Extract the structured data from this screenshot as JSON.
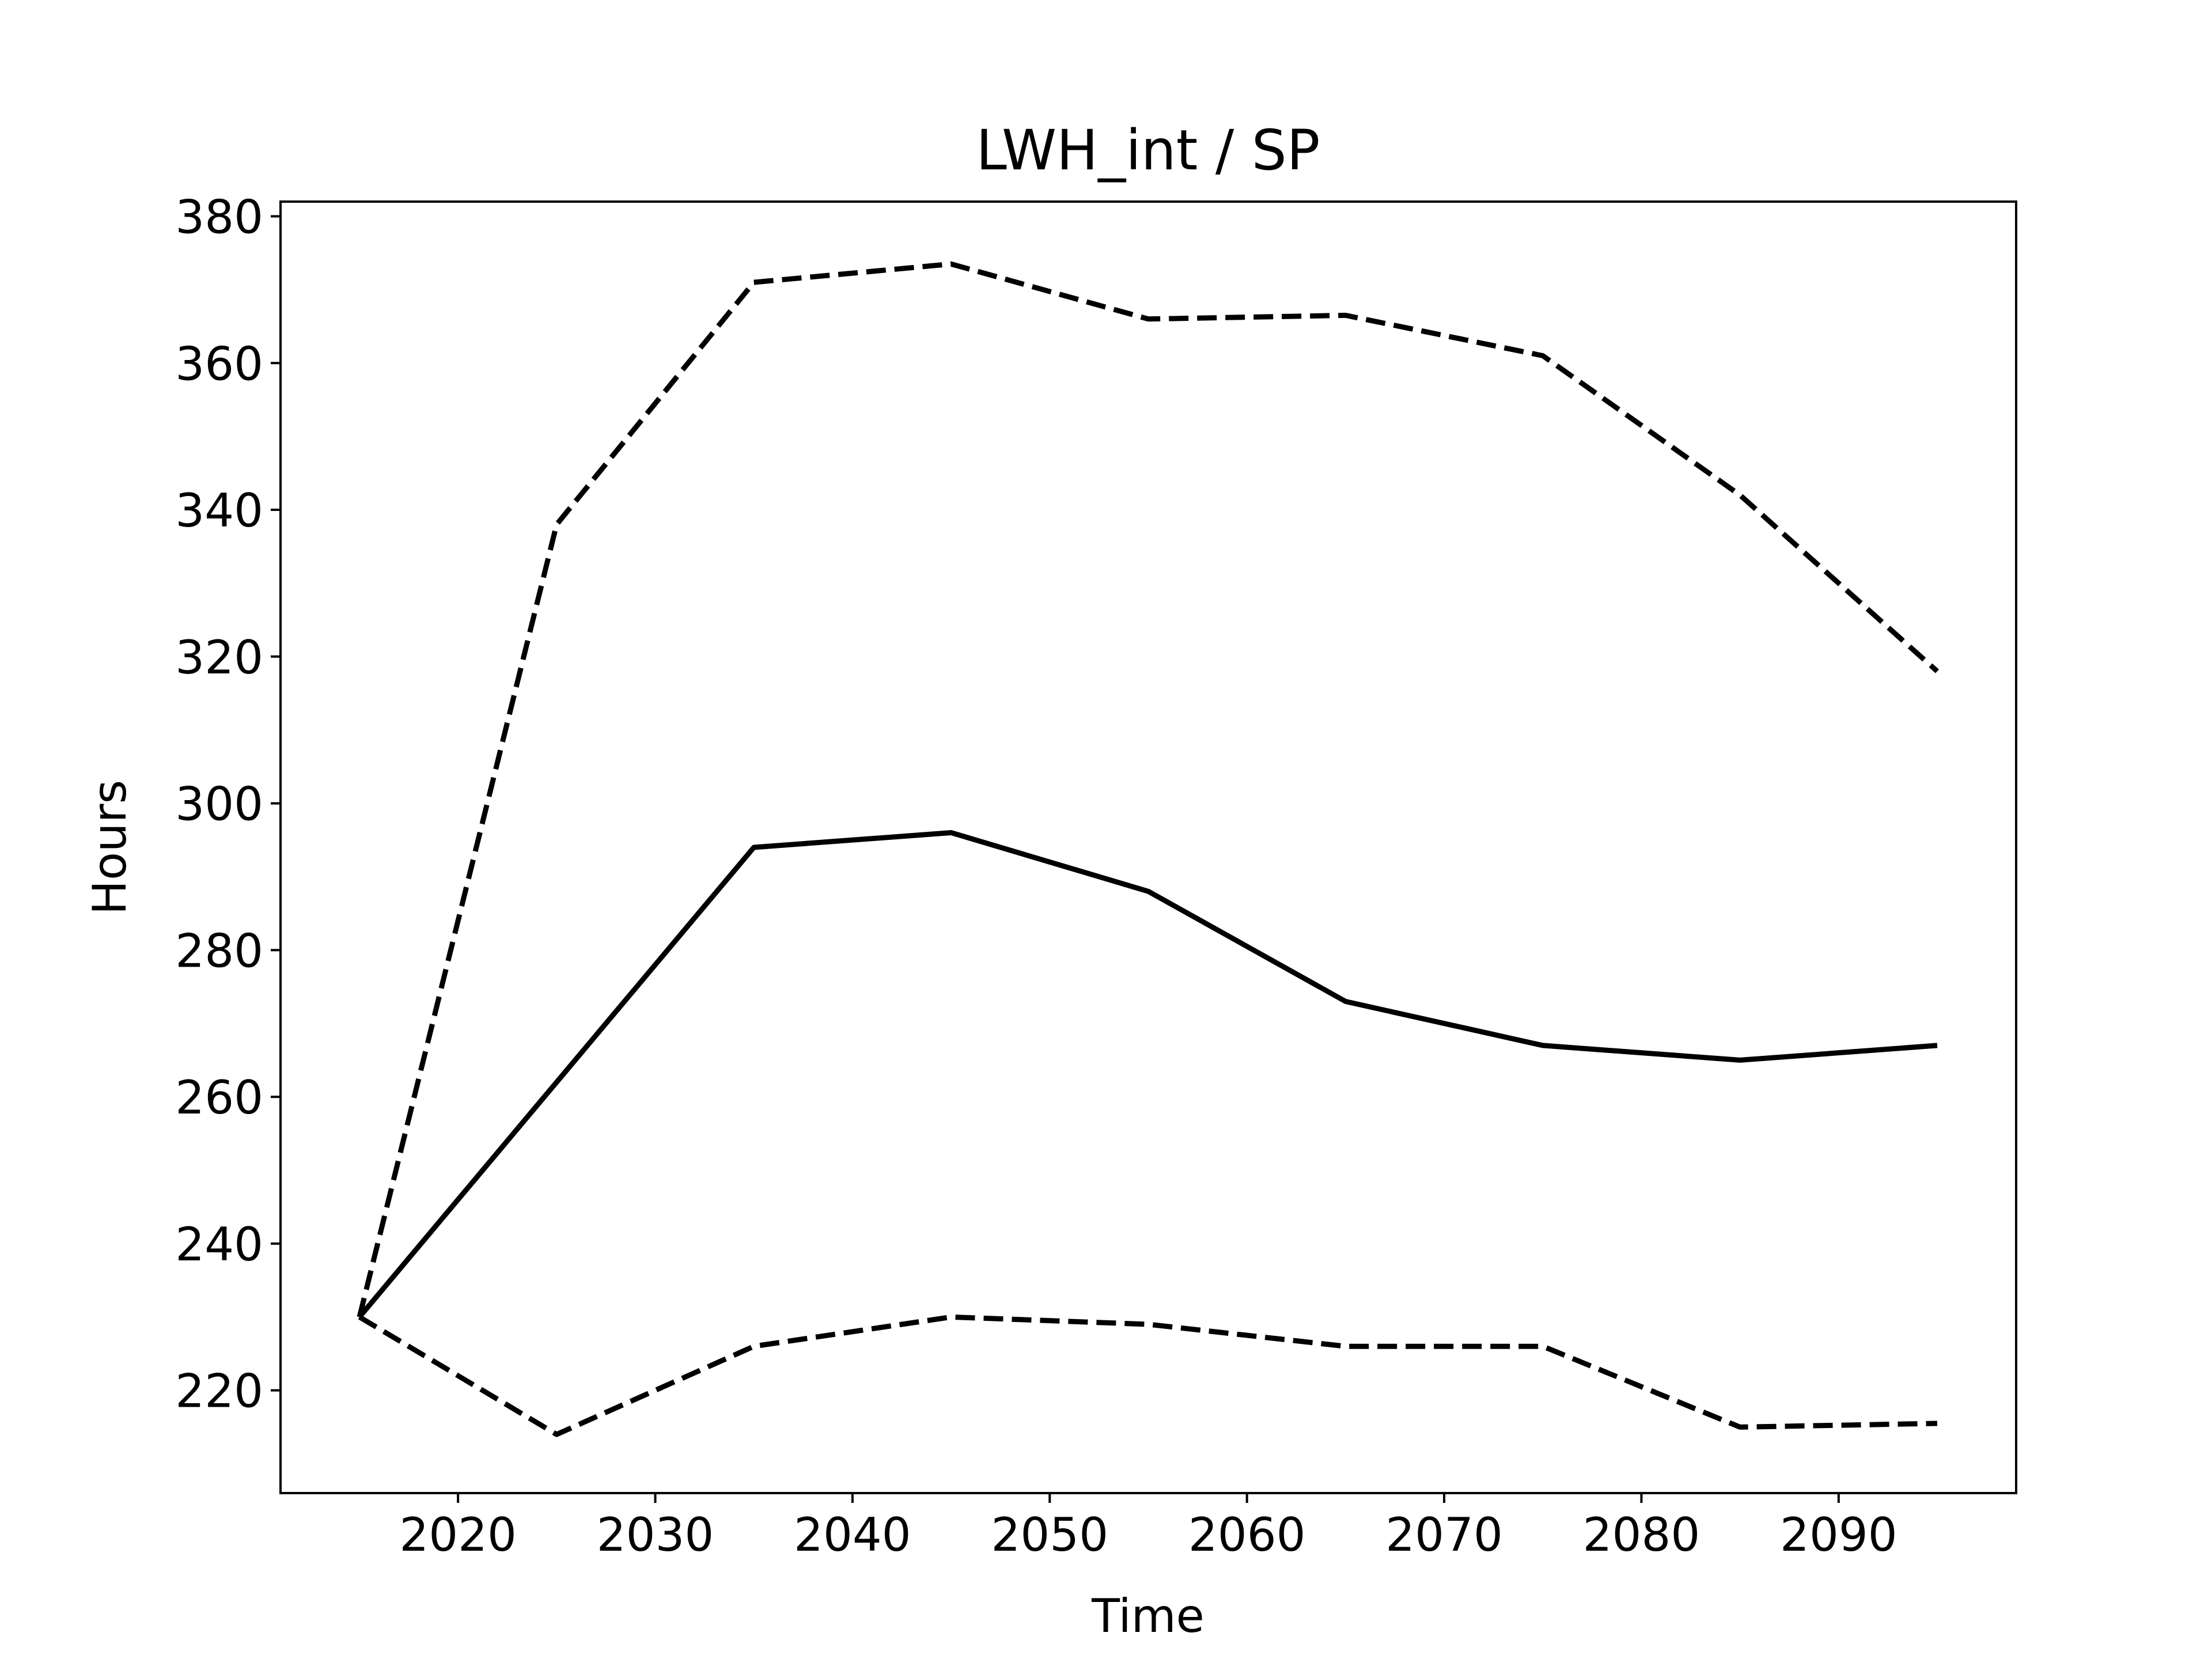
{
  "chart_data": {
    "type": "line",
    "title": "LWH_int / SP",
    "xlabel": "Time",
    "ylabel": "Hours",
    "x": [
      2015,
      2025,
      2035,
      2045,
      2055,
      2065,
      2075,
      2085,
      2095
    ],
    "series": [
      {
        "style": "solid",
        "values": [
          230,
          262,
          294,
          296,
          288,
          273,
          267,
          265,
          267
        ]
      },
      {
        "style": "dashed",
        "values": [
          230,
          338,
          371,
          373.5,
          366,
          366.5,
          361,
          342,
          318
        ]
      },
      {
        "style": "dashed",
        "values": [
          230,
          214,
          226,
          230,
          229,
          226,
          226,
          215,
          215.5
        ]
      }
    ],
    "xticks": [
      2020,
      2030,
      2040,
      2050,
      2060,
      2070,
      2080,
      2090
    ],
    "yticks": [
      220,
      240,
      260,
      280,
      300,
      320,
      340,
      360,
      380
    ],
    "xlim": [
      2011,
      2099
    ],
    "ylim": [
      206,
      382
    ],
    "grid": false,
    "colors": {
      "line": "#000000"
    }
  }
}
